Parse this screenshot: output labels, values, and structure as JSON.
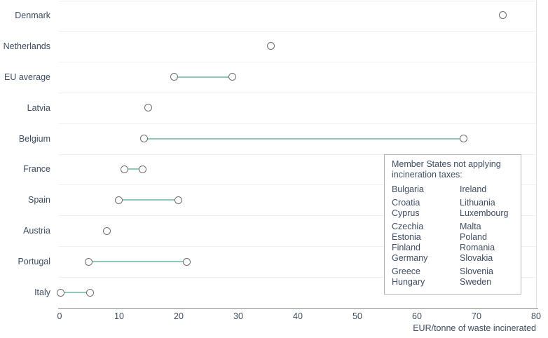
{
  "chart_data": {
    "type": "dumbbell",
    "title": "",
    "xlabel": "EUR/tonne of waste incinerated",
    "xlim": [
      0,
      80
    ],
    "xticks": [
      0,
      10,
      20,
      30,
      40,
      50,
      60,
      70,
      80
    ],
    "grid": "horizontal-row-separators",
    "legend_position": "none",
    "rows": [
      {
        "label": "Denmark",
        "values": [
          74.4
        ]
      },
      {
        "label": "Netherlands",
        "values": [
          35.5
        ]
      },
      {
        "label": "EU average",
        "values": [
          19.2,
          29.0
        ]
      },
      {
        "label": "Latvia",
        "values": [
          14.9
        ]
      },
      {
        "label": "Belgium",
        "values": [
          14.2,
          67.8
        ]
      },
      {
        "label": "France",
        "values": [
          10.9,
          13.9
        ]
      },
      {
        "label": "Spain",
        "values": [
          9.9,
          19.9
        ]
      },
      {
        "label": "Austria",
        "values": [
          7.9
        ]
      },
      {
        "label": "Portugal",
        "values": [
          4.9,
          21.3
        ]
      },
      {
        "label": "Italy",
        "values": [
          0.2,
          5.1
        ]
      }
    ]
  },
  "note": {
    "title": "Member States not applying incineration taxes:",
    "columns": [
      [
        "Bulgaria",
        "Croatia",
        "Cyprus",
        "Czechia",
        "Estonia",
        "Finland",
        "Germany",
        "Greece",
        "Hungary"
      ],
      [
        "Ireland",
        "Lithuania",
        "Luxembourg",
        "Malta",
        "Poland",
        "Romania",
        "Slovakia",
        "Slovenia",
        "Sweden"
      ]
    ]
  },
  "colors": {
    "text": "#3e4d62",
    "connector": "#8cc9ba",
    "marker_stroke": "#6e6e6e",
    "marker_fill": "#ffffff",
    "gridline": "#f0f0f0",
    "axis_line": "#8c8c8c",
    "right_border": "#e2e2e2",
    "note_border": "#b5b5b5"
  }
}
